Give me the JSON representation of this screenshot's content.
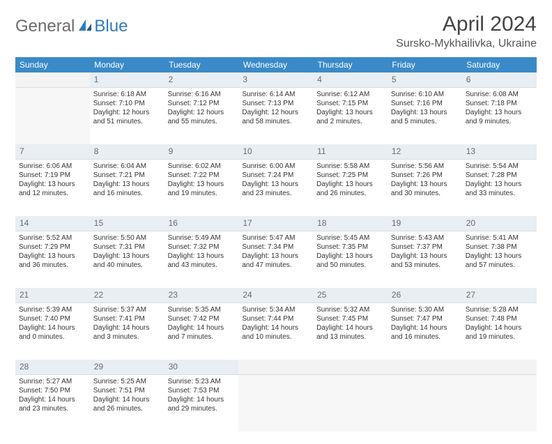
{
  "header": {
    "logo_part1": "General",
    "logo_part2": "Blue",
    "month_title": "April 2024",
    "location": "Sursko-Mykhailivka, Ukraine"
  },
  "colors": {
    "header_bg": "#3a8ac8",
    "daynum_bg": "#e8eef3",
    "sep_border": "#2f6fa3",
    "text": "#333333"
  },
  "day_headers": [
    "Sunday",
    "Monday",
    "Tuesday",
    "Wednesday",
    "Thursday",
    "Friday",
    "Saturday"
  ],
  "weeks": [
    {
      "nums": [
        "",
        "1",
        "2",
        "3",
        "4",
        "5",
        "6"
      ],
      "cells": [
        {
          "lines": []
        },
        {
          "lines": [
            "Sunrise: 6:18 AM",
            "Sunset: 7:10 PM",
            "Daylight: 12 hours",
            "and 51 minutes."
          ]
        },
        {
          "lines": [
            "Sunrise: 6:16 AM",
            "Sunset: 7:12 PM",
            "Daylight: 12 hours",
            "and 55 minutes."
          ]
        },
        {
          "lines": [
            "Sunrise: 6:14 AM",
            "Sunset: 7:13 PM",
            "Daylight: 12 hours",
            "and 58 minutes."
          ]
        },
        {
          "lines": [
            "Sunrise: 6:12 AM",
            "Sunset: 7:15 PM",
            "Daylight: 13 hours",
            "and 2 minutes."
          ]
        },
        {
          "lines": [
            "Sunrise: 6:10 AM",
            "Sunset: 7:16 PM",
            "Daylight: 13 hours",
            "and 5 minutes."
          ]
        },
        {
          "lines": [
            "Sunrise: 6:08 AM",
            "Sunset: 7:18 PM",
            "Daylight: 13 hours",
            "and 9 minutes."
          ]
        }
      ]
    },
    {
      "nums": [
        "7",
        "8",
        "9",
        "10",
        "11",
        "12",
        "13"
      ],
      "cells": [
        {
          "lines": [
            "Sunrise: 6:06 AM",
            "Sunset: 7:19 PM",
            "Daylight: 13 hours",
            "and 12 minutes."
          ]
        },
        {
          "lines": [
            "Sunrise: 6:04 AM",
            "Sunset: 7:21 PM",
            "Daylight: 13 hours",
            "and 16 minutes."
          ]
        },
        {
          "lines": [
            "Sunrise: 6:02 AM",
            "Sunset: 7:22 PM",
            "Daylight: 13 hours",
            "and 19 minutes."
          ]
        },
        {
          "lines": [
            "Sunrise: 6:00 AM",
            "Sunset: 7:24 PM",
            "Daylight: 13 hours",
            "and 23 minutes."
          ]
        },
        {
          "lines": [
            "Sunrise: 5:58 AM",
            "Sunset: 7:25 PM",
            "Daylight: 13 hours",
            "and 26 minutes."
          ]
        },
        {
          "lines": [
            "Sunrise: 5:56 AM",
            "Sunset: 7:26 PM",
            "Daylight: 13 hours",
            "and 30 minutes."
          ]
        },
        {
          "lines": [
            "Sunrise: 5:54 AM",
            "Sunset: 7:28 PM",
            "Daylight: 13 hours",
            "and 33 minutes."
          ]
        }
      ]
    },
    {
      "nums": [
        "14",
        "15",
        "16",
        "17",
        "18",
        "19",
        "20"
      ],
      "cells": [
        {
          "lines": [
            "Sunrise: 5:52 AM",
            "Sunset: 7:29 PM",
            "Daylight: 13 hours",
            "and 36 minutes."
          ]
        },
        {
          "lines": [
            "Sunrise: 5:50 AM",
            "Sunset: 7:31 PM",
            "Daylight: 13 hours",
            "and 40 minutes."
          ]
        },
        {
          "lines": [
            "Sunrise: 5:49 AM",
            "Sunset: 7:32 PM",
            "Daylight: 13 hours",
            "and 43 minutes."
          ]
        },
        {
          "lines": [
            "Sunrise: 5:47 AM",
            "Sunset: 7:34 PM",
            "Daylight: 13 hours",
            "and 47 minutes."
          ]
        },
        {
          "lines": [
            "Sunrise: 5:45 AM",
            "Sunset: 7:35 PM",
            "Daylight: 13 hours",
            "and 50 minutes."
          ]
        },
        {
          "lines": [
            "Sunrise: 5:43 AM",
            "Sunset: 7:37 PM",
            "Daylight: 13 hours",
            "and 53 minutes."
          ]
        },
        {
          "lines": [
            "Sunrise: 5:41 AM",
            "Sunset: 7:38 PM",
            "Daylight: 13 hours",
            "and 57 minutes."
          ]
        }
      ]
    },
    {
      "nums": [
        "21",
        "22",
        "23",
        "24",
        "25",
        "26",
        "27"
      ],
      "cells": [
        {
          "lines": [
            "Sunrise: 5:39 AM",
            "Sunset: 7:40 PM",
            "Daylight: 14 hours",
            "and 0 minutes."
          ]
        },
        {
          "lines": [
            "Sunrise: 5:37 AM",
            "Sunset: 7:41 PM",
            "Daylight: 14 hours",
            "and 3 minutes."
          ]
        },
        {
          "lines": [
            "Sunrise: 5:35 AM",
            "Sunset: 7:42 PM",
            "Daylight: 14 hours",
            "and 7 minutes."
          ]
        },
        {
          "lines": [
            "Sunrise: 5:34 AM",
            "Sunset: 7:44 PM",
            "Daylight: 14 hours",
            "and 10 minutes."
          ]
        },
        {
          "lines": [
            "Sunrise: 5:32 AM",
            "Sunset: 7:45 PM",
            "Daylight: 14 hours",
            "and 13 minutes."
          ]
        },
        {
          "lines": [
            "Sunrise: 5:30 AM",
            "Sunset: 7:47 PM",
            "Daylight: 14 hours",
            "and 16 minutes."
          ]
        },
        {
          "lines": [
            "Sunrise: 5:28 AM",
            "Sunset: 7:48 PM",
            "Daylight: 14 hours",
            "and 19 minutes."
          ]
        }
      ]
    },
    {
      "nums": [
        "28",
        "29",
        "30",
        "",
        "",
        "",
        ""
      ],
      "cells": [
        {
          "lines": [
            "Sunrise: 5:27 AM",
            "Sunset: 7:50 PM",
            "Daylight: 14 hours",
            "and 23 minutes."
          ]
        },
        {
          "lines": [
            "Sunrise: 5:25 AM",
            "Sunset: 7:51 PM",
            "Daylight: 14 hours",
            "and 26 minutes."
          ]
        },
        {
          "lines": [
            "Sunrise: 5:23 AM",
            "Sunset: 7:53 PM",
            "Daylight: 14 hours",
            "and 29 minutes."
          ]
        },
        {
          "lines": []
        },
        {
          "lines": []
        },
        {
          "lines": []
        },
        {
          "lines": []
        }
      ]
    }
  ]
}
